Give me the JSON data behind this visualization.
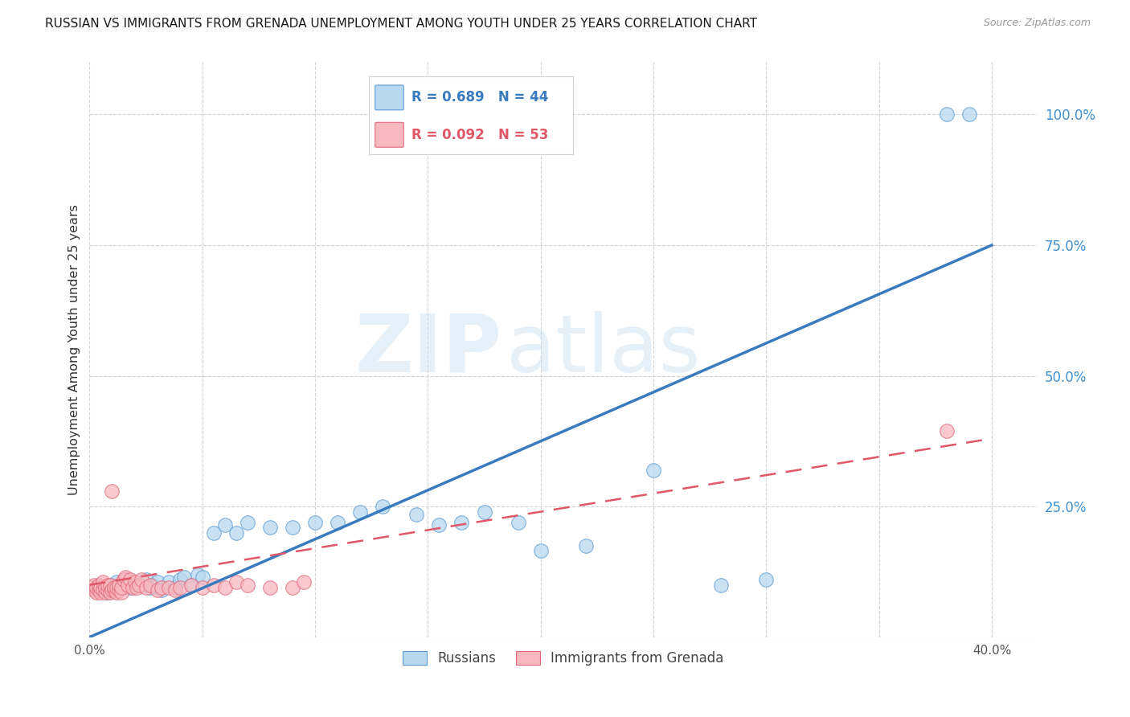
{
  "title": "RUSSIAN VS IMMIGRANTS FROM GRENADA UNEMPLOYMENT AMONG YOUTH UNDER 25 YEARS CORRELATION CHART",
  "source": "Source: ZipAtlas.com",
  "ylabel": "Unemployment Among Youth under 25 years",
  "xlim": [
    0.0,
    0.42
  ],
  "ylim": [
    0.0,
    1.1
  ],
  "ytick_vals": [
    0.0,
    0.25,
    0.5,
    0.75,
    1.0
  ],
  "ytick_labels": [
    "",
    "25.0%",
    "50.0%",
    "75.0%",
    "100.0%"
  ],
  "xtick_vals": [
    0.0,
    0.05,
    0.1,
    0.15,
    0.2,
    0.25,
    0.3,
    0.35,
    0.4
  ],
  "xtick_labels": [
    "0.0%",
    "",
    "",
    "",
    "",
    "",
    "",
    "",
    "40.0%"
  ],
  "blue_label": "Russians",
  "pink_label": "Immigrants from Grenada",
  "blue_R": "R = 0.689",
  "blue_N": "N = 44",
  "pink_R": "R = 0.092",
  "pink_N": "N = 53",
  "blue_face": "#b8d8f0",
  "blue_edge": "#5b9bd5",
  "pink_face": "#f8b8c0",
  "pink_edge": "#e06878",
  "blue_line": "#3a7bbf",
  "pink_line": "#e05868",
  "watermark_zip": "ZIP",
  "watermark_atlas": "atlas",
  "grid_color": "#d0d0d0",
  "bg_color": "#ffffff",
  "title_color": "#1a1a1a",
  "axis_label_color": "#333333",
  "tick_color_y": "#4090d0",
  "tick_color_x": "#555555",
  "blue_x": [
    0.005,
    0.008,
    0.01,
    0.012,
    0.013,
    0.015,
    0.016,
    0.018,
    0.02,
    0.022,
    0.025,
    0.027,
    0.028,
    0.03,
    0.032,
    0.035,
    0.038,
    0.04,
    0.042,
    0.045,
    0.048,
    0.05,
    0.055,
    0.06,
    0.065,
    0.07,
    0.08,
    0.09,
    0.1,
    0.11,
    0.12,
    0.13,
    0.145,
    0.155,
    0.165,
    0.175,
    0.19,
    0.2,
    0.22,
    0.25,
    0.28,
    0.3,
    0.38,
    0.39
  ],
  "blue_y": [
    0.095,
    0.085,
    0.1,
    0.105,
    0.095,
    0.1,
    0.11,
    0.095,
    0.105,
    0.1,
    0.11,
    0.095,
    0.1,
    0.105,
    0.09,
    0.105,
    0.095,
    0.11,
    0.115,
    0.1,
    0.12,
    0.115,
    0.2,
    0.215,
    0.2,
    0.22,
    0.21,
    0.21,
    0.22,
    0.22,
    0.24,
    0.25,
    0.235,
    0.215,
    0.22,
    0.24,
    0.22,
    0.165,
    0.175,
    0.32,
    0.1,
    0.11,
    1.0,
    1.0
  ],
  "pink_x": [
    0.001,
    0.002,
    0.002,
    0.003,
    0.003,
    0.004,
    0.004,
    0.005,
    0.005,
    0.006,
    0.006,
    0.007,
    0.007,
    0.008,
    0.008,
    0.009,
    0.009,
    0.01,
    0.01,
    0.011,
    0.011,
    0.012,
    0.012,
    0.013,
    0.013,
    0.014,
    0.014,
    0.015,
    0.016,
    0.017,
    0.018,
    0.019,
    0.02,
    0.021,
    0.022,
    0.023,
    0.025,
    0.027,
    0.03,
    0.032,
    0.035,
    0.038,
    0.04,
    0.045,
    0.05,
    0.055,
    0.06,
    0.065,
    0.07,
    0.08,
    0.09,
    0.095,
    0.38
  ],
  "pink_y": [
    0.095,
    0.09,
    0.1,
    0.085,
    0.095,
    0.09,
    0.1,
    0.085,
    0.095,
    0.09,
    0.105,
    0.085,
    0.095,
    0.09,
    0.1,
    0.085,
    0.1,
    0.09,
    0.28,
    0.09,
    0.095,
    0.085,
    0.095,
    0.09,
    0.1,
    0.085,
    0.095,
    0.11,
    0.115,
    0.1,
    0.11,
    0.095,
    0.105,
    0.095,
    0.1,
    0.11,
    0.095,
    0.1,
    0.09,
    0.095,
    0.095,
    0.09,
    0.095,
    0.1,
    0.095,
    0.1,
    0.095,
    0.105,
    0.1,
    0.095,
    0.095,
    0.105,
    0.395
  ]
}
